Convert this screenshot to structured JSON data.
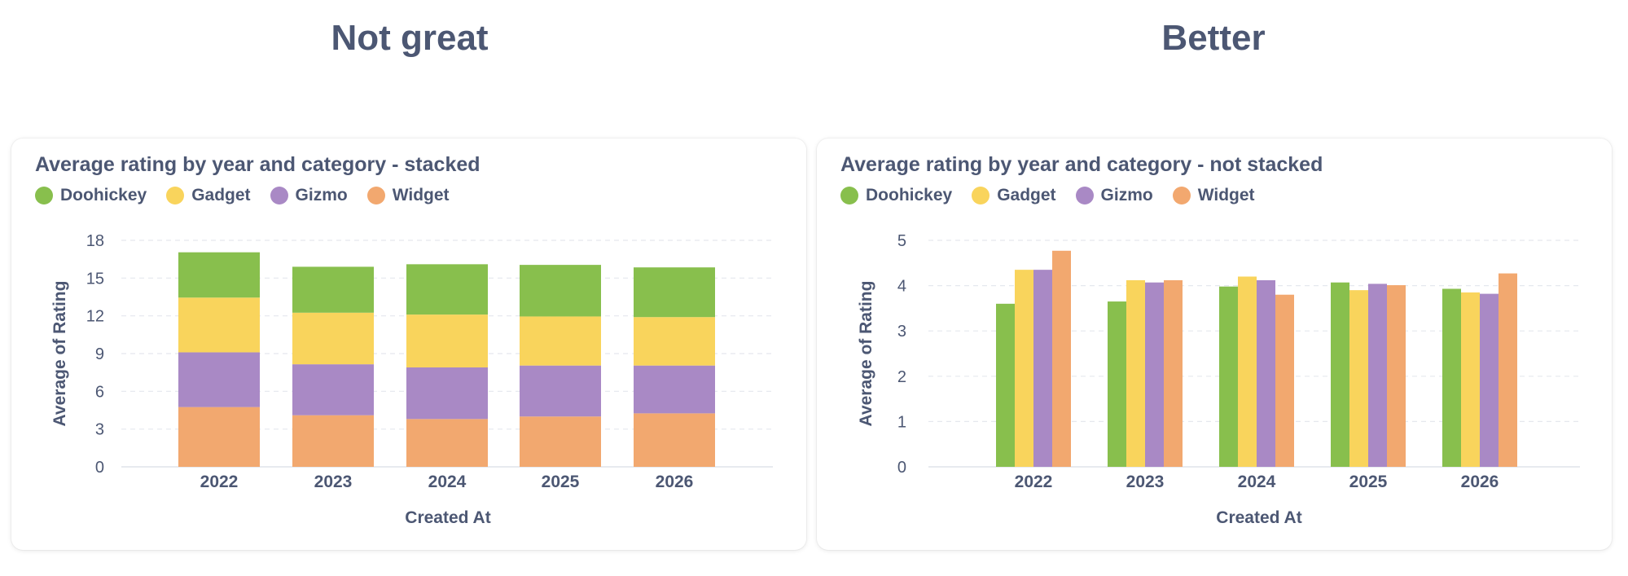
{
  "headings": {
    "left": "Not great",
    "right": "Better"
  },
  "colors": {
    "Doohickey": "#88bf4d",
    "Gadget": "#f9d45c",
    "Gizmo": "#a989c5",
    "Widget": "#f2a86f"
  },
  "chart_data": [
    {
      "type": "bar",
      "stacked": true,
      "title": "Average rating by year and category - stacked",
      "xlabel": "Created At",
      "ylabel": "Average of Rating",
      "ylim": [
        0,
        18
      ],
      "yticks": [
        0,
        3,
        6,
        9,
        12,
        15,
        18
      ],
      "categories": [
        "2022",
        "2023",
        "2024",
        "2025",
        "2026"
      ],
      "series": [
        {
          "name": "Doohickey",
          "values": [
            3.6,
            3.65,
            4.0,
            4.1,
            3.95
          ]
        },
        {
          "name": "Gadget",
          "values": [
            4.35,
            4.1,
            4.2,
            3.9,
            3.85
          ]
        },
        {
          "name": "Gizmo",
          "values": [
            4.35,
            4.05,
            4.1,
            4.05,
            3.8
          ]
        },
        {
          "name": "Widget",
          "values": [
            4.75,
            4.1,
            3.8,
            4.0,
            4.25
          ]
        }
      ],
      "stack_order": [
        "Widget",
        "Gizmo",
        "Gadget",
        "Doohickey"
      ],
      "legend": [
        "Doohickey",
        "Gadget",
        "Gizmo",
        "Widget"
      ]
    },
    {
      "type": "bar",
      "stacked": false,
      "title": "Average rating by year and category - not stacked",
      "xlabel": "Created At",
      "ylabel": "Average of Rating",
      "ylim": [
        0,
        5
      ],
      "yticks": [
        0,
        1,
        2,
        3,
        4,
        5
      ],
      "categories": [
        "2022",
        "2023",
        "2024",
        "2025",
        "2026"
      ],
      "series": [
        {
          "name": "Doohickey",
          "values": [
            3.6,
            3.65,
            3.98,
            4.07,
            3.93
          ]
        },
        {
          "name": "Gadget",
          "values": [
            4.35,
            4.12,
            4.2,
            3.9,
            3.85
          ]
        },
        {
          "name": "Gizmo",
          "values": [
            4.35,
            4.07,
            4.12,
            4.04,
            3.82
          ]
        },
        {
          "name": "Widget",
          "values": [
            4.77,
            4.12,
            3.8,
            4.01,
            4.27
          ]
        }
      ],
      "legend": [
        "Doohickey",
        "Gadget",
        "Gizmo",
        "Widget"
      ]
    }
  ]
}
